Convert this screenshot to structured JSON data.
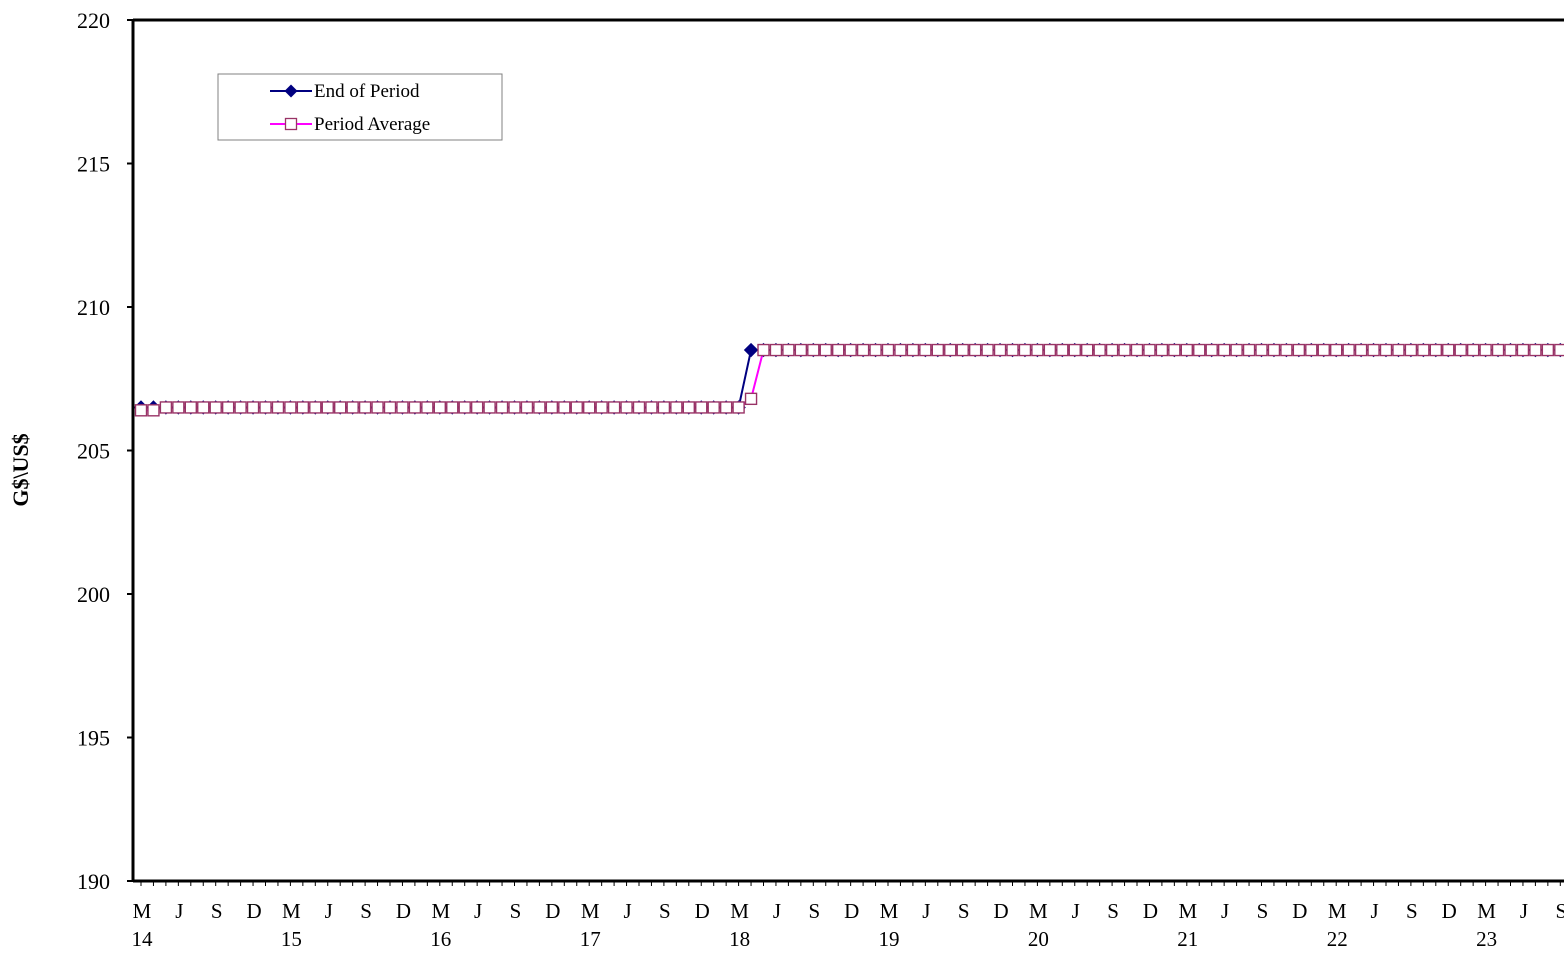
{
  "chart_data": {
    "type": "line",
    "ylabel": "G$\\US$",
    "xlabel": "",
    "title": "",
    "ylim": [
      190,
      220
    ],
    "yticks": [
      190,
      195,
      200,
      205,
      210,
      215,
      220
    ],
    "x_start": "2014-03",
    "x_frequency": "monthly",
    "x_month_labels": [
      "M",
      "J",
      "S",
      "D"
    ],
    "x_year_labels": [
      "14",
      "15",
      "16",
      "17",
      "18",
      "19",
      "20",
      "21",
      "22",
      "23"
    ],
    "legend_position": "top-left",
    "series": [
      {
        "name": "End of Period",
        "color": "#000080",
        "marker": "filled-diamond",
        "values": [
          206.5,
          206.5,
          206.5,
          206.5,
          206.5,
          206.5,
          206.5,
          206.5,
          206.5,
          206.5,
          206.5,
          206.5,
          206.5,
          206.5,
          206.5,
          206.5,
          206.5,
          206.5,
          206.5,
          206.5,
          206.5,
          206.5,
          206.5,
          206.5,
          206.5,
          206.5,
          206.5,
          206.5,
          206.5,
          206.5,
          206.5,
          206.5,
          206.5,
          206.5,
          206.5,
          206.5,
          206.5,
          206.5,
          206.5,
          206.5,
          206.5,
          206.5,
          206.5,
          206.5,
          206.5,
          206.5,
          206.5,
          206.5,
          206.5,
          208.5,
          208.5,
          208.5,
          208.5,
          208.5,
          208.5,
          208.5,
          208.5,
          208.5,
          208.5,
          208.5,
          208.5,
          208.5,
          208.5,
          208.5,
          208.5,
          208.5,
          208.5,
          208.5,
          208.5,
          208.5,
          208.5,
          208.5,
          208.5,
          208.5,
          208.5,
          208.5,
          208.5,
          208.5,
          208.5,
          208.5,
          208.5,
          208.5,
          208.5,
          208.5,
          208.5,
          208.5,
          208.5,
          208.5,
          208.5,
          208.5,
          208.5,
          208.5,
          208.5,
          208.5,
          208.5,
          208.5,
          208.5,
          208.5,
          208.5,
          208.5,
          208.5,
          208.5,
          208.5,
          208.5,
          208.5,
          208.5,
          208.5,
          208.5,
          208.5,
          208.5,
          208.5,
          208.5,
          208.5,
          208.5,
          208.5
        ]
      },
      {
        "name": "Period Average",
        "color": "#ff00ff",
        "marker": "hollow-square",
        "values": [
          206.4,
          206.4,
          206.5,
          206.5,
          206.5,
          206.5,
          206.5,
          206.5,
          206.5,
          206.5,
          206.5,
          206.5,
          206.5,
          206.5,
          206.5,
          206.5,
          206.5,
          206.5,
          206.5,
          206.5,
          206.5,
          206.5,
          206.5,
          206.5,
          206.5,
          206.5,
          206.5,
          206.5,
          206.5,
          206.5,
          206.5,
          206.5,
          206.5,
          206.5,
          206.5,
          206.5,
          206.5,
          206.5,
          206.5,
          206.5,
          206.5,
          206.5,
          206.5,
          206.5,
          206.5,
          206.5,
          206.5,
          206.5,
          206.5,
          206.8,
          208.5,
          208.5,
          208.5,
          208.5,
          208.5,
          208.5,
          208.5,
          208.5,
          208.5,
          208.5,
          208.5,
          208.5,
          208.5,
          208.5,
          208.5,
          208.5,
          208.5,
          208.5,
          208.5,
          208.5,
          208.5,
          208.5,
          208.5,
          208.5,
          208.5,
          208.5,
          208.5,
          208.5,
          208.5,
          208.5,
          208.5,
          208.5,
          208.5,
          208.5,
          208.5,
          208.5,
          208.5,
          208.5,
          208.5,
          208.5,
          208.5,
          208.5,
          208.5,
          208.5,
          208.5,
          208.5,
          208.5,
          208.5,
          208.5,
          208.5,
          208.5,
          208.5,
          208.5,
          208.5,
          208.5,
          208.5,
          208.5,
          208.5,
          208.5,
          208.5,
          208.5,
          208.5,
          208.5,
          208.5,
          208.5
        ]
      }
    ]
  }
}
